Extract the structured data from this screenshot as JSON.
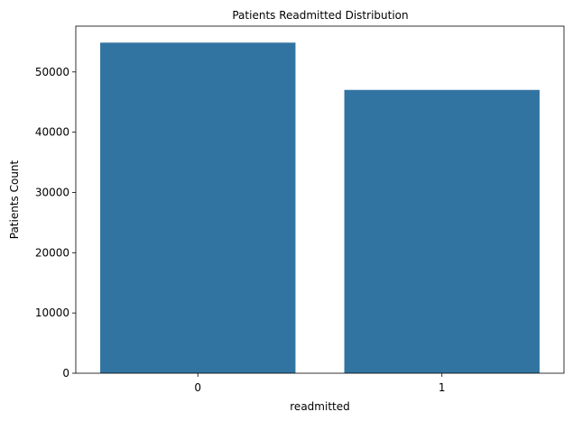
{
  "chart_data": {
    "type": "bar",
    "title": "Patients Readmitted Distribution",
    "xlabel": "readmitted",
    "ylabel": "Patients Count",
    "categories": [
      "0",
      "1"
    ],
    "values": [
      54864,
      47017
    ],
    "ylim": [
      0,
      57600
    ],
    "yticks": [
      0,
      10000,
      20000,
      30000,
      40000,
      50000
    ],
    "grid": false,
    "legend": "none",
    "bar_color": "#3274a1"
  }
}
